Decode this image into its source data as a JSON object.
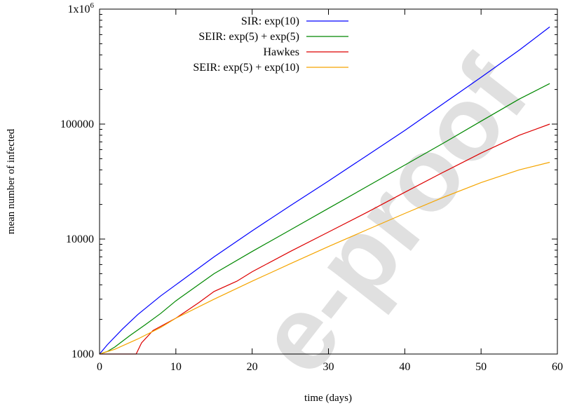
{
  "chart_data": {
    "type": "line",
    "xlabel": "time (days)",
    "ylabel": "mean number of infected",
    "xlim": [
      0,
      60
    ],
    "ylim": [
      1000,
      1000000
    ],
    "yscale": "log",
    "grid": false,
    "legend_position": "top-left",
    "x_ticks": [
      {
        "value": 0,
        "label": "0"
      },
      {
        "value": 10,
        "label": "10"
      },
      {
        "value": 20,
        "label": "20"
      },
      {
        "value": 30,
        "label": "30"
      },
      {
        "value": 40,
        "label": "40"
      },
      {
        "value": 50,
        "label": "50"
      },
      {
        "value": 60,
        "label": "60"
      }
    ],
    "y_ticks": [
      {
        "value": 1000,
        "label": "1000"
      },
      {
        "value": 10000,
        "label": "10000"
      },
      {
        "value": 100000,
        "label": "100000"
      },
      {
        "value": 1000000,
        "label": "1x10",
        "sup": "6"
      }
    ],
    "series": [
      {
        "name": "SIR: exp(10)",
        "color": "#0000ff",
        "points": [
          [
            0,
            1000
          ],
          [
            1,
            1200
          ],
          [
            3,
            1650
          ],
          [
            5,
            2200
          ],
          [
            8,
            3200
          ],
          [
            10,
            4000
          ],
          [
            15,
            7000
          ],
          [
            20,
            11800
          ],
          [
            25,
            19500
          ],
          [
            30,
            32000
          ],
          [
            35,
            53000
          ],
          [
            40,
            88000
          ],
          [
            45,
            150000
          ],
          [
            50,
            255000
          ],
          [
            55,
            440000
          ],
          [
            59,
            700000
          ]
        ]
      },
      {
        "name": "SEIR: exp(5) + exp(5)",
        "color": "#008800",
        "points": [
          [
            0,
            1000
          ],
          [
            1,
            1050
          ],
          [
            2,
            1150
          ],
          [
            4,
            1450
          ],
          [
            6,
            1800
          ],
          [
            8,
            2250
          ],
          [
            10,
            2900
          ],
          [
            15,
            5000
          ],
          [
            20,
            7800
          ],
          [
            25,
            12000
          ],
          [
            30,
            18500
          ],
          [
            35,
            28500
          ],
          [
            40,
            44000
          ],
          [
            45,
            68000
          ],
          [
            50,
            106000
          ],
          [
            55,
            165000
          ],
          [
            59,
            225000
          ]
        ]
      },
      {
        "name": "Hawkes",
        "color": "#dd0000",
        "points": [
          [
            0,
            1000
          ],
          [
            4.8,
            1000
          ],
          [
            5.5,
            1250
          ],
          [
            7,
            1600
          ],
          [
            10,
            2050
          ],
          [
            13,
            2800
          ],
          [
            15,
            3500
          ],
          [
            18,
            4300
          ],
          [
            20,
            5200
          ],
          [
            25,
            7800
          ],
          [
            30,
            11500
          ],
          [
            35,
            17000
          ],
          [
            40,
            25500
          ],
          [
            45,
            38000
          ],
          [
            50,
            56000
          ],
          [
            55,
            80000
          ],
          [
            59,
            100000
          ]
        ]
      },
      {
        "name": "SEIR: exp(5) + exp(10)",
        "color": "#f5a500",
        "points": [
          [
            0,
            1000
          ],
          [
            2,
            1100
          ],
          [
            5,
            1350
          ],
          [
            8,
            1700
          ],
          [
            10,
            2050
          ],
          [
            15,
            3000
          ],
          [
            20,
            4300
          ],
          [
            25,
            6100
          ],
          [
            30,
            8600
          ],
          [
            35,
            12000
          ],
          [
            40,
            16700
          ],
          [
            45,
            23000
          ],
          [
            50,
            31000
          ],
          [
            55,
            40000
          ],
          [
            59,
            46500
          ]
        ]
      }
    ]
  }
}
